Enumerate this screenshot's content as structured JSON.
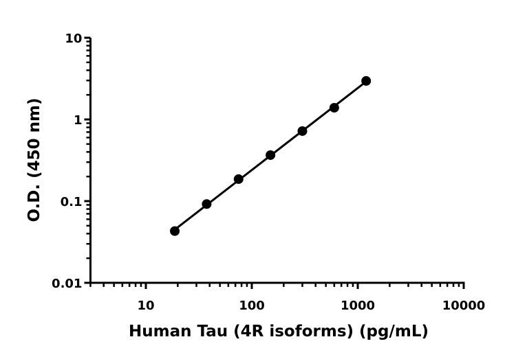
{
  "chart_data": {
    "type": "scatter",
    "title": "",
    "xlabel": "Human Tau (4R isoforms) (pg/mL)",
    "ylabel": "O.D. (450 nm)",
    "xscale": "log",
    "yscale": "log",
    "xlim": [
      3,
      10000
    ],
    "ylim": [
      0.01,
      10
    ],
    "xticks": [
      10,
      100,
      1000,
      10000
    ],
    "xtick_labels": [
      "10",
      "100",
      "1000",
      "10000"
    ],
    "yticks": [
      0.01,
      0.1,
      1,
      10
    ],
    "ytick_labels": [
      "0.01",
      "0.1",
      "1",
      "10"
    ],
    "grid": false,
    "fit_line": true,
    "color": "#000000",
    "series": [
      {
        "x": [
          18.75,
          37.5,
          75,
          150,
          300,
          600,
          1200
        ],
        "y": [
          0.043,
          0.092,
          0.186,
          0.366,
          0.72,
          1.39,
          2.96
        ]
      }
    ]
  }
}
